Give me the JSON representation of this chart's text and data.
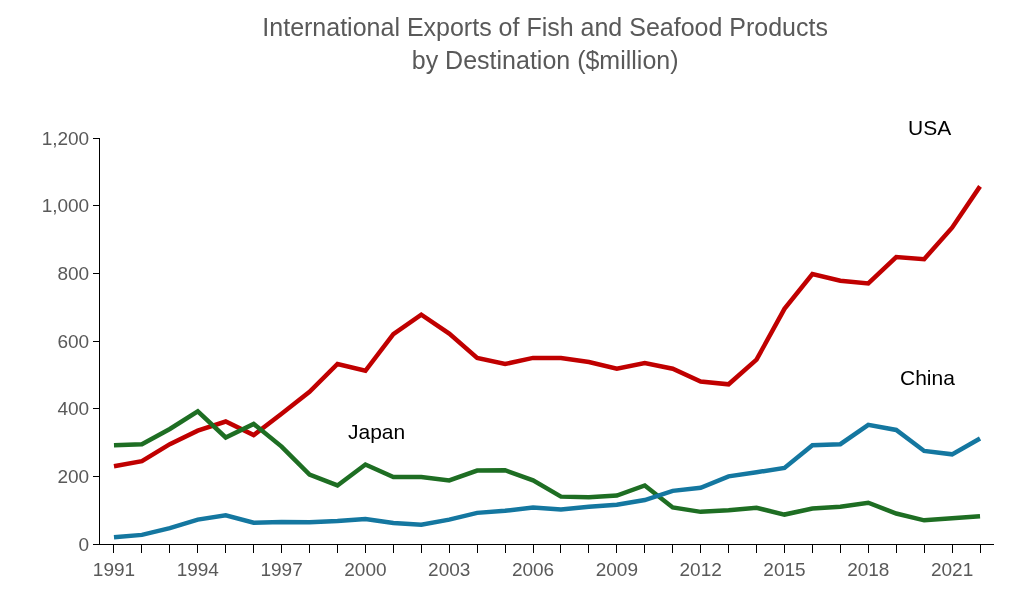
{
  "chart_data": {
    "type": "line",
    "title": "International Exports of Fish and Seafood Products\nby Destination ($million)",
    "x": [
      1991,
      1992,
      1993,
      1994,
      1995,
      1996,
      1997,
      1998,
      1999,
      2000,
      2001,
      2002,
      2003,
      2004,
      2005,
      2006,
      2007,
      2008,
      2009,
      2010,
      2011,
      2012,
      2013,
      2014,
      2015,
      2016,
      2017,
      2018,
      2019,
      2020,
      2021,
      2022
    ],
    "series": [
      {
        "name": "USA",
        "color": "#c00000",
        "values": [
          230,
          245,
          295,
          335,
          362,
          322,
          385,
          450,
          532,
          512,
          620,
          678,
          622,
          550,
          532,
          550,
          550,
          538,
          518,
          535,
          518,
          480,
          472,
          545,
          695,
          798,
          778,
          770,
          848,
          842,
          935,
          1057
        ]
      },
      {
        "name": "Japan",
        "color": "#1e6e23",
        "values": [
          292,
          295,
          340,
          392,
          315,
          355,
          288,
          205,
          173,
          235,
          198,
          198,
          188,
          217,
          218,
          188,
          140,
          138,
          143,
          173,
          108,
          95,
          100,
          107,
          87,
          105,
          110,
          122,
          90,
          70,
          76,
          82
        ]
      },
      {
        "name": "China",
        "color": "#1477a0",
        "values": [
          20,
          27,
          47,
          72,
          85,
          63,
          65,
          64,
          68,
          74,
          62,
          57,
          72,
          92,
          98,
          108,
          102,
          110,
          116,
          130,
          157,
          166,
          200,
          212,
          225,
          292,
          295,
          352,
          337,
          275,
          265,
          312
        ]
      }
    ],
    "xlim": [
      1990.5,
      2022.5
    ],
    "xticks": [
      1991,
      {
        "value": 1992,
        "label": null
      },
      {
        "value": 1993,
        "label": null
      },
      1994,
      {
        "value": 1995,
        "label": null
      },
      {
        "value": 1996,
        "label": null
      },
      1997,
      {
        "value": 1998,
        "label": null
      },
      {
        "value": 1999,
        "label": null
      },
      2000,
      {
        "value": 2001,
        "label": null
      },
      {
        "value": 2002,
        "label": null
      },
      2003,
      {
        "value": 2004,
        "label": null
      },
      {
        "value": 2005,
        "label": null
      },
      2006,
      {
        "value": 2007,
        "label": null
      },
      {
        "value": 2008,
        "label": null
      },
      2009,
      {
        "value": 2010,
        "label": null
      },
      {
        "value": 2011,
        "label": null
      },
      2012,
      {
        "value": 2013,
        "label": null
      },
      {
        "value": 2014,
        "label": null
      },
      2015,
      {
        "value": 2016,
        "label": null
      },
      {
        "value": 2017,
        "label": null
      },
      2018,
      {
        "value": 2019,
        "label": null
      },
      {
        "value": 2020,
        "label": null
      },
      2021,
      {
        "value": 2022,
        "label": null
      }
    ],
    "ylim": [
      0,
      1200
    ],
    "yticks": [
      0,
      {
        "value": 200,
        "label": "200"
      },
      {
        "value": 400,
        "label": "400"
      },
      {
        "value": 600,
        "label": "600"
      },
      {
        "value": 800,
        "label": "800"
      },
      {
        "value": 1000,
        "label": "1,000"
      },
      {
        "value": 1200,
        "label": "1,200"
      }
    ],
    "legend": false,
    "marker": "none",
    "line_style": "solid"
  }
}
